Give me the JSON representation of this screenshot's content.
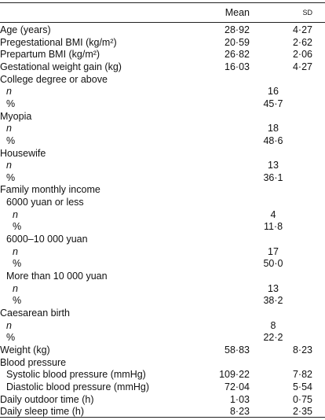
{
  "table": {
    "header": [
      "Mean",
      "SD"
    ],
    "rows": [
      {
        "label": "Age (years)",
        "mean": "28·92",
        "sd": "4·27"
      },
      {
        "label": "Pregestational BMI (kg/m²)",
        "mean": "20·59",
        "sd": "2·62"
      },
      {
        "label": "Prepartum BMI (kg/m²)",
        "mean": "26·82",
        "sd": "2·06"
      },
      {
        "label": "Gestational weight gain (kg)",
        "mean": "16·03",
        "sd": "4·27"
      },
      {
        "label": "College degree or above"
      },
      {
        "label": "n",
        "mean": "16"
      },
      {
        "label": "%",
        "mean": "45·7"
      },
      {
        "label": "Myopia"
      },
      {
        "label": "n",
        "mean": "18"
      },
      {
        "label": "%",
        "mean": "48·6"
      },
      {
        "label": "Housewife"
      },
      {
        "label": "n",
        "mean": "13"
      },
      {
        "label": "%",
        "mean": "36·1"
      },
      {
        "label": "Family monthly income"
      },
      {
        "label": "6000 yuan or less"
      },
      {
        "label": "n",
        "mean": "4"
      },
      {
        "label": "%",
        "mean": "11·8"
      },
      {
        "label": "6000–10 000 yuan"
      },
      {
        "label": "n",
        "mean": "17"
      },
      {
        "label": "%",
        "mean": "50·0"
      },
      {
        "label": "More than 10 000 yuan"
      },
      {
        "label": "n",
        "mean": "13"
      },
      {
        "label": "%",
        "mean": "38·2"
      },
      {
        "label": "Caesarean birth"
      },
      {
        "label": "n",
        "mean": "8"
      },
      {
        "label": "%",
        "mean": "22·2"
      },
      {
        "label": "Weight (kg)",
        "mean": "58·83",
        "sd": "8·23"
      },
      {
        "label": "Blood pressure"
      },
      {
        "label": "Systolic blood pressure (mmHg)",
        "mean": "109·22",
        "sd": "7·82"
      },
      {
        "label": "Diastolic blood pressure (mmHg)",
        "mean": "72·04",
        "sd": "5·54"
      },
      {
        "label": "Daily outdoor time (h)",
        "mean": "1·03",
        "sd": "0·75"
      },
      {
        "label": "Daily sleep time (h)",
        "mean": "8·23",
        "sd": "2·35"
      }
    ]
  }
}
